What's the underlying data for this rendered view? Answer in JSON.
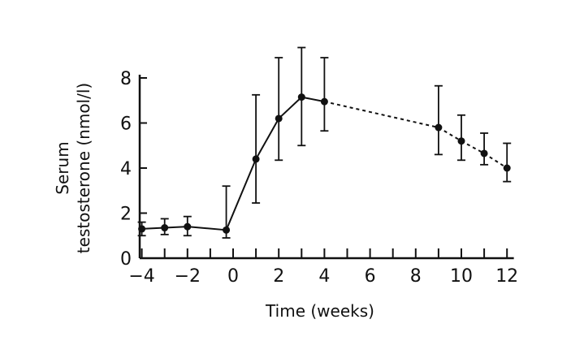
{
  "chart_data": {
    "type": "line",
    "title": "",
    "xlabel": "Time (weeks)",
    "ylabel_lines": [
      "Serum",
      "testosterone (nmol/l)"
    ],
    "xlim": [
      -4.5,
      12.3
    ],
    "ylim": [
      0,
      8
    ],
    "x_ticks": [
      -4,
      -2,
      0,
      2,
      4,
      6,
      8,
      10,
      12
    ],
    "x_tick_labels": [
      "−4",
      "−2",
      "0",
      "2",
      "4",
      "6",
      "8",
      "10",
      "12"
    ],
    "y_ticks": [
      0,
      2,
      4,
      6,
      8
    ],
    "y_tick_labels": [
      "0",
      "2",
      "4",
      "6",
      "8"
    ],
    "grid": false,
    "legend": "none",
    "colors": {
      "line": "#111111",
      "marker": "#111111"
    },
    "series": [
      {
        "points": [
          {
            "x": -4,
            "y": 1.3,
            "err_low": 0.3,
            "err_high": 0.3
          },
          {
            "x": -3,
            "y": 1.35,
            "err_low": 0.3,
            "err_high": 0.4
          },
          {
            "x": -2,
            "y": 1.4,
            "err_low": 0.4,
            "err_high": 0.45
          },
          {
            "x": -0.3,
            "y": 1.25,
            "err_low": 0.35,
            "err_high": 1.95
          },
          {
            "x": 1,
            "y": 4.4,
            "err_low": 1.95,
            "err_high": 2.85
          },
          {
            "x": 2,
            "y": 6.2,
            "err_low": 1.85,
            "err_high": 2.7
          },
          {
            "x": 3,
            "y": 7.15,
            "err_low": 2.15,
            "err_high": 2.2
          },
          {
            "x": 4,
            "y": 6.95,
            "err_low": 1.3,
            "err_high": 1.95
          },
          {
            "x": 9,
            "y": 5.8,
            "err_low": 1.2,
            "err_high": 1.85
          },
          {
            "x": 10,
            "y": 5.2,
            "err_low": 0.85,
            "err_high": 1.15
          },
          {
            "x": 11,
            "y": 4.65,
            "err_low": 0.5,
            "err_high": 0.9
          },
          {
            "x": 12,
            "y": 4.0,
            "err_low": 0.6,
            "err_high": 1.1
          }
        ],
        "dashed_after_x": 4
      }
    ]
  }
}
